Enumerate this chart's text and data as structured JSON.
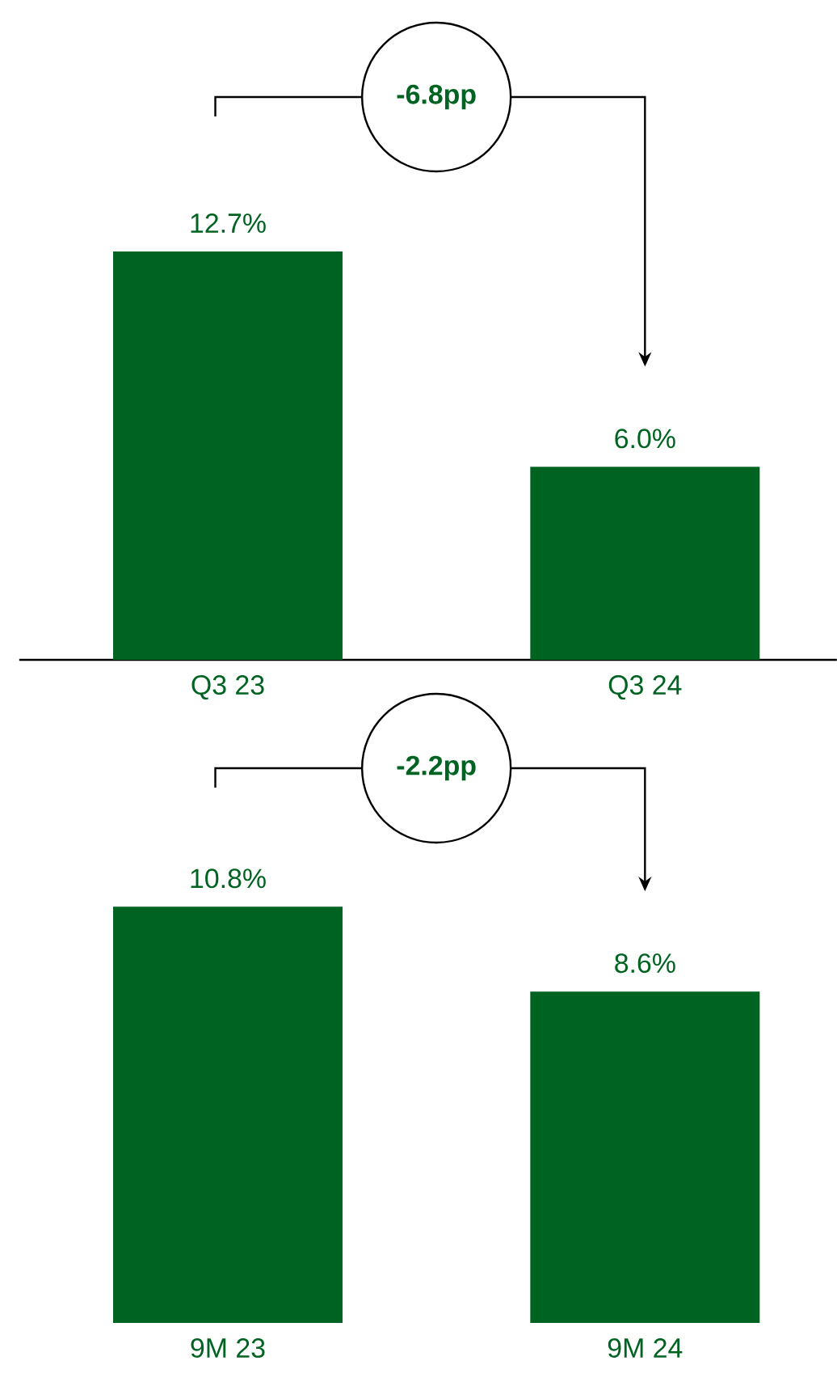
{
  "chart_data": [
    {
      "type": "bar",
      "categories": [
        "Q3 23",
        "Q3 24"
      ],
      "values": [
        12.7,
        6.0
      ],
      "color": "#006321",
      "value_labels": [
        "12.7%",
        "6.0%"
      ],
      "annotations": [
        "-6.8pp"
      ]
    },
    {
      "type": "bar",
      "categories": [
        "9M 23",
        "9M 24"
      ],
      "values": [
        10.8,
        8.6
      ],
      "color": "#006321",
      "value_labels": [
        "10.8%",
        "8.6%"
      ],
      "annotations": [
        "-2.2pp"
      ]
    }
  ]
}
